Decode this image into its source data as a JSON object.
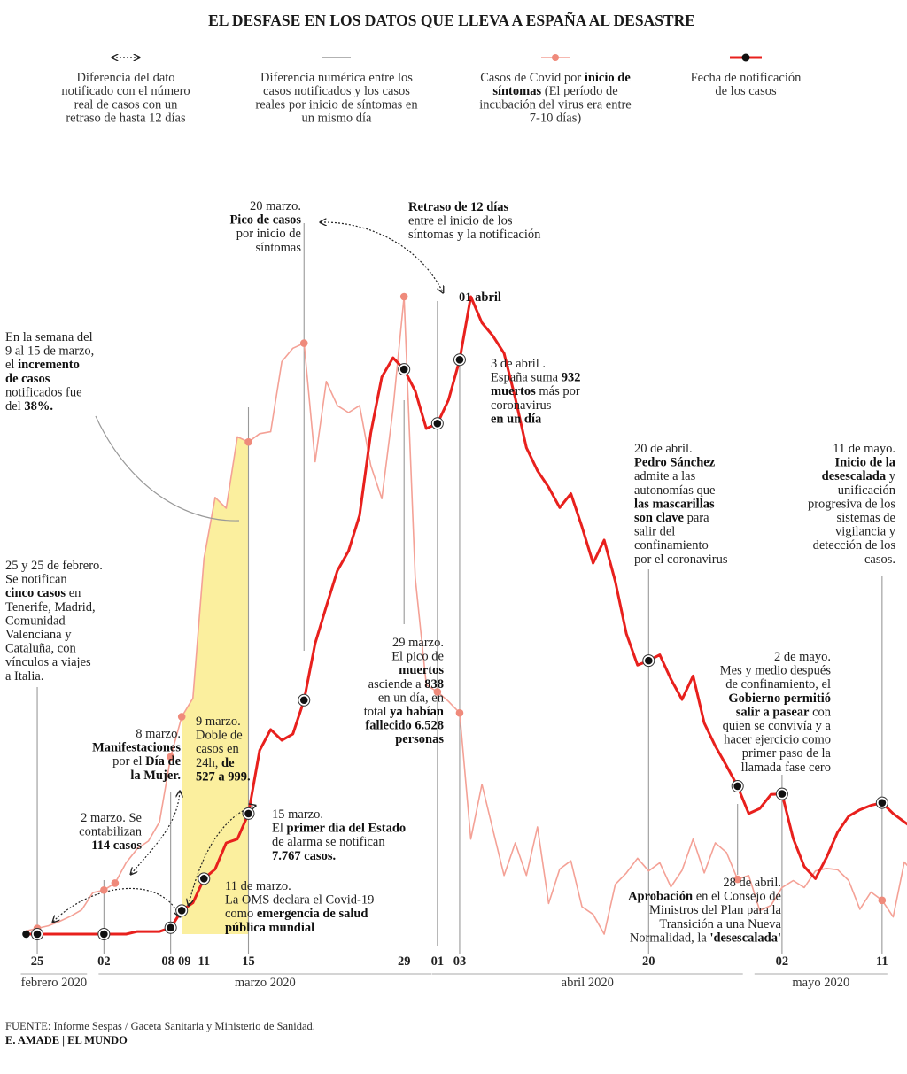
{
  "title": "EL DESFASE EN LOS DATOS QUE LLEVA A ESPAÑA AL DESASTRE",
  "legend": [
    {
      "icon": "dotted-double-arrow",
      "lines": [
        [
          {
            "t": "Diferencia del dato"
          }
        ],
        [
          {
            "t": "notificado con el número"
          }
        ],
        [
          {
            "t": "real de casos con un"
          }
        ],
        [
          {
            "t": "retraso de hasta 12 días"
          }
        ]
      ]
    },
    {
      "icon": "gray-line",
      "lines": [
        [
          {
            "t": "Diferencia numérica entre los"
          }
        ],
        [
          {
            "t": "casos notificados y los casos"
          }
        ],
        [
          {
            "t": "reales por inicio de síntomas en"
          }
        ],
        [
          {
            "t": "un mismo día"
          }
        ]
      ]
    },
    {
      "icon": "salmon-line-dot",
      "lines": [
        [
          {
            "t": "Casos de Covid por "
          },
          {
            "t": "inicio de",
            "b": true
          }
        ],
        [
          {
            "t": "síntomas",
            "b": true
          },
          {
            "t": " (El período de"
          }
        ],
        [
          {
            "t": "incubación del virus era entre"
          }
        ],
        [
          {
            "t": "7-10 días)"
          }
        ]
      ]
    },
    {
      "icon": "red-line-dot",
      "lines": [
        [
          {
            "t": "Fecha de notificación"
          }
        ],
        [
          {
            "t": "de los casos"
          }
        ]
      ]
    }
  ],
  "colors": {
    "onset": "#f4a196",
    "onset_dot": "#ef8a7b",
    "notified": "#e8201d",
    "highlight": "#fbef9e",
    "guide": "#999999"
  },
  "chart_data": {
    "type": "line",
    "x_range": [
      "2020-02-24",
      "2020-05-11"
    ],
    "y_range": [
      0,
      100
    ],
    "y_units": "relative scale (no numeric axis printed)",
    "x_ticks": [
      {
        "date": "2020-02-25",
        "label": "25"
      },
      {
        "date": "2020-03-02",
        "label": "02"
      },
      {
        "date": "2020-03-08",
        "label": "08"
      },
      {
        "date": "2020-03-09",
        "label": "09"
      },
      {
        "date": "2020-03-11",
        "label": "11"
      },
      {
        "date": "2020-03-15",
        "label": "15"
      },
      {
        "date": "2020-03-29",
        "label": "29"
      },
      {
        "date": "2020-04-01",
        "label": "01"
      },
      {
        "date": "2020-04-03",
        "label": "03"
      },
      {
        "date": "2020-04-20",
        "label": "20"
      },
      {
        "date": "2020-05-02",
        "label": "02"
      },
      {
        "date": "2020-05-11",
        "label": "11"
      }
    ],
    "months": [
      {
        "label": "febrero 2020",
        "from": "2020-02-24",
        "to": "2020-02-29"
      },
      {
        "label": "marzo 2020",
        "from": "2020-03-02",
        "to": "2020-03-31"
      },
      {
        "label": "abril 2020",
        "from": "2020-04-01",
        "to": "2020-04-28"
      },
      {
        "label": "mayo 2020",
        "from": "2020-04-30",
        "to": "2020-05-11"
      }
    ],
    "highlight": {
      "from": "2020-03-09",
      "to": "2020-03-15",
      "series": "onset"
    },
    "series": [
      {
        "name": "Casos de Covid por inicio de síntomas",
        "key": "onset",
        "start": "2020-02-24",
        "values": [
          0.5,
          0.9,
          1.3,
          2.0,
          2.8,
          3.8,
          6.5,
          6.9,
          8.0,
          11.2,
          13.4,
          14.6,
          17.6,
          27.8,
          34.1,
          37.0,
          58.9,
          68.5,
          66.8,
          78.0,
          77.2,
          78.5,
          78.8,
          89.8,
          91.9,
          92.7,
          74.1,
          86.7,
          82.9,
          81.8,
          82.9,
          73.5,
          68.3,
          82.3,
          100.0,
          55.9,
          39.1,
          38.0,
          36.5,
          34.7,
          14.9,
          23.5,
          16.3,
          9.2,
          14.3,
          9.2,
          16.8,
          4.8,
          10.2,
          11.5,
          4.3,
          3.1,
          0.0,
          7.8,
          9.6,
          11.9,
          9.9,
          11.2,
          7.4,
          10.0,
          14.9,
          9.6,
          14.3,
          12.8,
          8.6,
          9.2,
          3.7,
          4.5,
          7.3,
          8.4,
          7.3,
          9.9,
          10.3,
          10.1,
          8.4,
          3.9,
          6.6,
          5.3,
          2.7,
          11.3,
          9.3,
          9.0,
          8.0,
          7.5,
          6.2,
          7.1,
          6.8,
          7.5,
          5.8,
          5.6,
          5.0,
          4.3,
          3.1,
          4.8,
          6.6,
          8.0,
          7.8,
          7.8,
          8.0,
          7.4,
          6.8,
          6.0,
          5.2,
          4.9,
          3.9,
          4.8,
          3.9,
          3.8,
          3.6,
          3.2,
          3.1
        ]
      },
      {
        "name": "Fecha de notificación de los casos",
        "key": "notified",
        "start": "2020-02-24",
        "values": [
          0.0,
          0.0,
          0.0,
          0.0,
          0.0,
          0.0,
          0.0,
          0.0,
          0.0,
          0.0,
          0.4,
          0.4,
          0.4,
          1.0,
          3.7,
          4.9,
          8.7,
          10.2,
          14.3,
          14.9,
          18.9,
          28.8,
          32.1,
          30.4,
          31.4,
          36.7,
          45.6,
          51.4,
          57.0,
          60.1,
          65.7,
          78.6,
          87.4,
          90.4,
          88.6,
          85.2,
          79.3,
          80.1,
          83.8,
          90.1,
          100.0,
          95.9,
          93.8,
          91.1,
          84.1,
          76.3,
          72.7,
          70.1,
          66.9,
          69.1,
          63.9,
          58.2,
          61.8,
          55.3,
          47.1,
          42.2,
          42.9,
          43.8,
          40.0,
          36.8,
          40.5,
          33.1,
          29.5,
          26.4,
          23.2,
          18.9,
          19.7,
          21.9,
          22.0,
          15.0,
          10.6,
          8.7,
          12.0,
          16.0,
          18.5,
          19.5,
          20.2,
          20.6,
          18.9,
          17.6,
          16.3,
          14.8,
          13.4,
          12.0,
          11.6,
          11.0,
          10.6,
          9.9,
          9.4,
          9.0,
          8.5,
          8.0,
          7.4,
          7.0,
          6.4,
          5.8,
          5.2,
          4.6,
          4.0,
          3.5,
          3.9,
          4.3,
          4.8,
          5.3,
          5.8,
          6.2,
          6.7,
          7.2,
          7.6,
          8.1,
          8.5
        ]
      }
    ]
  },
  "annotations": {
    "febrero": [
      [
        {
          "t": "25 y 25 de febrero."
        }
      ],
      [
        {
          "t": "Se notifican"
        }
      ],
      [
        {
          "t": "cinco casos",
          "b": true
        },
        {
          "t": " en"
        }
      ],
      [
        {
          "t": "Tenerife, Madrid,"
        }
      ],
      [
        {
          "t": "Comunidad"
        }
      ],
      [
        {
          "t": "Valenciana y"
        }
      ],
      [
        {
          "t": "Cataluña, con"
        }
      ],
      [
        {
          "t": "vínculos a viajes"
        }
      ],
      [
        {
          "t": "a Italia."
        }
      ]
    ],
    "marzo2": [
      [
        {
          "t": "2 marzo. Se"
        }
      ],
      [
        {
          "t": "contabilizan"
        }
      ],
      [
        {
          "t": "114 casos",
          "b": true
        }
      ]
    ],
    "marzo8": [
      [
        {
          "t": "8 marzo."
        }
      ],
      [
        {
          "t": "Manifestaciones",
          "b": true
        }
      ],
      [
        {
          "t": "por el "
        },
        {
          "t": "Día de",
          "b": true
        }
      ],
      [
        {
          "t": "la Mujer.",
          "b": true
        }
      ]
    ],
    "marzo9": [
      [
        {
          "t": "9 marzo."
        }
      ],
      [
        {
          "t": "Doble de"
        }
      ],
      [
        {
          "t": "casos en"
        }
      ],
      [
        {
          "t": "24h, "
        },
        {
          "t": "de",
          "b": true
        }
      ],
      [
        {
          "t": "527 a 999.",
          "b": true
        }
      ]
    ],
    "marzo11": [
      [
        {
          "t": "11 de marzo."
        }
      ],
      [
        {
          "t": "La OMS declara el Covid-19"
        }
      ],
      [
        {
          "t": "como "
        },
        {
          "t": "emergencia de salud",
          "b": true
        }
      ],
      [
        {
          "t": "pública mundial",
          "b": true
        }
      ]
    ],
    "marzo15": [
      [
        {
          "t": "15 marzo."
        }
      ],
      [
        {
          "t": "El "
        },
        {
          "t": "primer día del Estado",
          "b": true
        }
      ],
      [
        {
          "t": "de alarma se notifican"
        }
      ],
      [
        {
          "t": "7.767 casos.",
          "b": true
        }
      ]
    ],
    "semana": [
      [
        {
          "t": "En la semana del"
        }
      ],
      [
        {
          "t": "9 al 15 de marzo,"
        }
      ],
      [
        {
          "t": "el "
        },
        {
          "t": "incremento",
          "b": true
        }
      ],
      [
        {
          "t": "de casos",
          "b": true
        }
      ],
      [
        {
          "t": "notificados fue"
        }
      ],
      [
        {
          "t": "del "
        },
        {
          "t": "38%.",
          "b": true
        }
      ]
    ],
    "pico": [
      [
        {
          "t": "20 marzo."
        }
      ],
      [
        {
          "t": "Pico de casos",
          "b": true
        }
      ],
      [
        {
          "t": "por inicio de"
        }
      ],
      [
        {
          "t": "síntomas"
        }
      ]
    ],
    "retraso": [
      [
        {
          "t": "Retraso de 12 días",
          "b": true
        }
      ],
      [
        {
          "t": "entre el inicio de los"
        }
      ],
      [
        {
          "t": "síntomas y la notificación"
        }
      ]
    ],
    "abril1": [
      [
        {
          "t": "01 abril",
          "b": true
        }
      ]
    ],
    "abril3": [
      [
        {
          "t": "3 de abril ."
        }
      ],
      [
        {
          "t": "España suma "
        },
        {
          "t": "932",
          "b": true
        }
      ],
      [
        {
          "t": "muertos",
          "b": true
        },
        {
          "t": " más por"
        }
      ],
      [
        {
          "t": "coronavirus"
        }
      ],
      [
        {
          "t": "en un día",
          "b": true
        }
      ]
    ],
    "marzo29": [
      [
        {
          "t": "29 marzo."
        }
      ],
      [
        {
          "t": "El pico de"
        }
      ],
      [
        {
          "t": "muertos",
          "b": true
        }
      ],
      [
        {
          "t": "asciende a "
        },
        {
          "t": "838",
          "b": true
        }
      ],
      [
        {
          "t": "en un día, en"
        }
      ],
      [
        {
          "t": "total "
        },
        {
          "t": "ya habían",
          "b": true
        }
      ],
      [
        {
          "t": "fallecido 6.528",
          "b": true
        }
      ],
      [
        {
          "t": "personas",
          "b": true
        }
      ]
    ],
    "abril20": [
      [
        {
          "t": "20 de abril."
        }
      ],
      [
        {
          "t": "Pedro Sánchez",
          "b": true
        }
      ],
      [
        {
          "t": "admite a las"
        }
      ],
      [
        {
          "t": "autonomías que"
        }
      ],
      [
        {
          "t": "las mascarillas",
          "b": true
        }
      ],
      [
        {
          "t": "son clave",
          "b": true
        },
        {
          "t": " para"
        }
      ],
      [
        {
          "t": "salir del"
        }
      ],
      [
        {
          "t": "confinamiento"
        }
      ],
      [
        {
          "t": "por el coronavirus"
        }
      ]
    ],
    "mayo11": [
      [
        {
          "t": "11 de mayo."
        }
      ],
      [
        {
          "t": "Inicio de la",
          "b": true
        }
      ],
      [
        {
          "t": "desescalada",
          "b": true
        },
        {
          "t": " y"
        }
      ],
      [
        {
          "t": "unificación"
        }
      ],
      [
        {
          "t": "progresiva de los"
        }
      ],
      [
        {
          "t": "sistemas de"
        }
      ],
      [
        {
          "t": "vigilancia y"
        }
      ],
      [
        {
          "t": "detección de los"
        }
      ],
      [
        {
          "t": "casos."
        }
      ]
    ],
    "mayo2": [
      [
        {
          "t": "2 de mayo."
        }
      ],
      [
        {
          "t": "Mes y medio después"
        }
      ],
      [
        {
          "t": "de confinamiento, el"
        }
      ],
      [
        {
          "t": "Gobierno permitió",
          "b": true
        }
      ],
      [
        {
          "t": "salir a pasear",
          "b": true
        },
        {
          "t": " con"
        }
      ],
      [
        {
          "t": "quien se convivía y a"
        }
      ],
      [
        {
          "t": "hacer ejercicio como"
        }
      ],
      [
        {
          "t": "primer paso de la"
        }
      ],
      [
        {
          "t": "llamada fase cero"
        }
      ]
    ],
    "abril28": [
      [
        {
          "t": "28 de abril."
        }
      ],
      [
        {
          "t": "Aprobación",
          "b": true
        },
        {
          "t": " en el Consejo de"
        }
      ],
      [
        {
          "t": "Ministros del Plan para la"
        }
      ],
      [
        {
          "t": "Transición a una Nueva"
        }
      ],
      [
        {
          "t": "Normalidad, la "
        },
        {
          "t": "'desescalada'",
          "b": true
        }
      ]
    ]
  },
  "footer": {
    "source": "FUENTE: Informe Sespas / Gaceta Sanitaria y Ministerio de Sanidad.",
    "credit": "E. AMADE | EL MUNDO"
  }
}
